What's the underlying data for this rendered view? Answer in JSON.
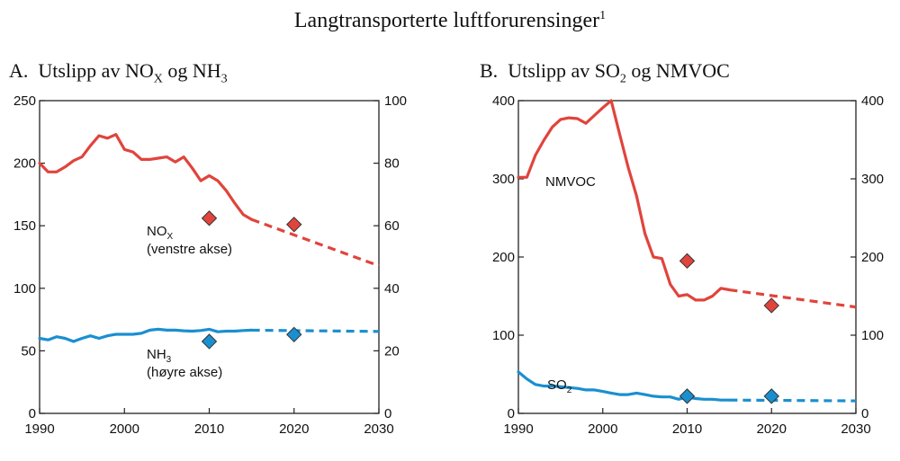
{
  "figure": {
    "title": "Langtransporterte luftforurensinger",
    "title_footnote": "1",
    "colors": {
      "red": "#e0443c",
      "blue": "#1a8fd0",
      "axis": "#222222"
    }
  },
  "chart_data": [
    {
      "type": "line",
      "panel_prefix": "A.",
      "panel_text_1": "Utslipp av NO",
      "panel_sub_1": "X",
      "panel_text_2": " og NH",
      "panel_sub_2": "3",
      "xlim": [
        1990,
        2030
      ],
      "x_ticks": [
        1990,
        2000,
        2010,
        2020,
        2030
      ],
      "x_tick_labels": [
        "1990",
        "2000",
        "2010",
        "2020",
        "2030"
      ],
      "left_axis": {
        "ylim": [
          0,
          250
        ],
        "ticks": [
          0,
          50,
          100,
          150,
          200,
          250
        ],
        "tick_labels": [
          "0",
          "50",
          "100",
          "150",
          "200",
          "250"
        ]
      },
      "right_axis": {
        "ylim": [
          0,
          100
        ],
        "ticks": [
          0,
          20,
          40,
          60,
          80,
          100
        ],
        "tick_labels": [
          "0",
          "20",
          "40",
          "60",
          "80",
          "100"
        ]
      },
      "series": [
        {
          "name": "NOX",
          "axis": "left",
          "color": "red",
          "x": [
            1990,
            1991,
            1992,
            1993,
            1994,
            1995,
            1996,
            1997,
            1998,
            1999,
            2000,
            2001,
            2002,
            2003,
            2004,
            2005,
            2006,
            2007,
            2008,
            2009,
            2010,
            2011,
            2012,
            2013,
            2014,
            2015
          ],
          "values": [
            200,
            193,
            193,
            197,
            202,
            205,
            214,
            222,
            220,
            223,
            211,
            209,
            203,
            203,
            204,
            205,
            201,
            205,
            196,
            186,
            190,
            186,
            178,
            168,
            159,
            155
          ],
          "projection": {
            "x": [
              2015,
              2030
            ],
            "values": [
              155,
              118
            ]
          },
          "markers": [
            {
              "x": 2010,
              "y": 156
            },
            {
              "x": 2020,
              "y": 151
            }
          ],
          "label_main": "NO",
          "label_sub": "X",
          "label_line2": "(venstre akse)"
        },
        {
          "name": "NH3",
          "axis": "right",
          "color": "blue",
          "x": [
            1990,
            1991,
            1992,
            1993,
            1994,
            1995,
            1996,
            1997,
            1998,
            1999,
            2000,
            2001,
            2002,
            2003,
            2004,
            2005,
            2006,
            2007,
            2008,
            2009,
            2010,
            2011,
            2012,
            2013,
            2014,
            2015
          ],
          "values": [
            24,
            23.5,
            24.5,
            24,
            23,
            24,
            24.8,
            24,
            24.8,
            25.3,
            25.3,
            25.3,
            25.6,
            26.6,
            26.9,
            26.6,
            26.6,
            26.4,
            26.3,
            26.5,
            26.9,
            26.1,
            26.3,
            26.3,
            26.5,
            26.6
          ],
          "projection": {
            "x": [
              2015,
              2030
            ],
            "values": [
              26.6,
              26.2
            ]
          },
          "markers": [
            {
              "x": 2010,
              "y": 23
            },
            {
              "x": 2020,
              "y": 25.2
            }
          ],
          "label_main": "NH",
          "label_sub": "3",
          "label_line2": "(høyre akse)"
        }
      ]
    },
    {
      "type": "line",
      "panel_prefix": "B.",
      "panel_text_1": "Utslipp av SO",
      "panel_sub_1": "2",
      "panel_text_2": " og NMVOC",
      "panel_sub_2": "",
      "xlim": [
        1990,
        2030
      ],
      "x_ticks": [
        1990,
        2000,
        2010,
        2020,
        2030
      ],
      "x_tick_labels": [
        "1990",
        "2000",
        "2010",
        "2020",
        "2030"
      ],
      "left_axis": {
        "ylim": [
          0,
          400
        ],
        "ticks": [
          0,
          100,
          200,
          300,
          400
        ],
        "tick_labels": [
          "0",
          "100",
          "200",
          "300",
          "400"
        ]
      },
      "right_axis": {
        "ylim": [
          0,
          400
        ],
        "ticks": [
          0,
          100,
          200,
          300,
          400
        ],
        "tick_labels": [
          "0",
          "100",
          "200",
          "300",
          "400"
        ]
      },
      "series": [
        {
          "name": "NMVOC",
          "axis": "left",
          "color": "red",
          "x": [
            1990,
            1991,
            1992,
            1993,
            1994,
            1995,
            1996,
            1997,
            1998,
            1999,
            2000,
            2001,
            2002,
            2003,
            2004,
            2005,
            2006,
            2007,
            2008,
            2009,
            2010,
            2011,
            2012,
            2013,
            2014,
            2015
          ],
          "values": [
            302,
            302,
            330,
            349,
            366,
            376,
            378,
            377,
            371,
            381,
            391,
            400,
            357,
            315,
            278,
            230,
            200,
            198,
            165,
            150,
            152,
            145,
            145,
            150,
            160,
            158
          ],
          "projection": {
            "x": [
              2015,
              2030
            ],
            "values": [
              158,
              136
            ]
          },
          "markers": [
            {
              "x": 2010,
              "y": 195
            },
            {
              "x": 2020,
              "y": 138
            }
          ],
          "label_main": "NMVOC",
          "label_sub": "",
          "label_line2": ""
        },
        {
          "name": "SO2",
          "axis": "left",
          "color": "blue",
          "x": [
            1990,
            1991,
            1992,
            1993,
            1994,
            1995,
            1996,
            1997,
            1998,
            1999,
            2000,
            2001,
            2002,
            2003,
            2004,
            2005,
            2006,
            2007,
            2008,
            2009,
            2010,
            2011,
            2012,
            2013,
            2014,
            2015
          ],
          "values": [
            53,
            44,
            37,
            35,
            35,
            34,
            33,
            32,
            30,
            30,
            28,
            26,
            24,
            24,
            26,
            24,
            22,
            21,
            21,
            18,
            21,
            19,
            18,
            18,
            17,
            17
          ],
          "projection": {
            "x": [
              2015,
              2030
            ],
            "values": [
              17,
              16
            ]
          },
          "markers": [
            {
              "x": 2010,
              "y": 22
            },
            {
              "x": 2020,
              "y": 22
            }
          ],
          "label_main": "SO",
          "label_sub": "2",
          "label_line2": ""
        }
      ]
    }
  ]
}
